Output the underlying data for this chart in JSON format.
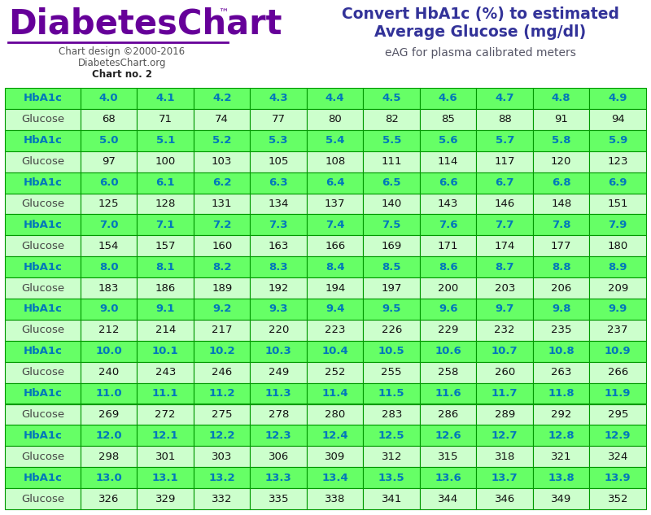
{
  "title_right_line1": "Convert HbA1c (%) to estimated",
  "title_right_line2": "Average Glucose (mg/dl)",
  "title_right_line3": "eAG for plasma calibrated meters",
  "logo_text": "DiabetesChart",
  "logo_tm": "™",
  "logo_sub1": "Chart design ©2000-2016",
  "logo_sub2": "DiabetesChart.org",
  "logo_sub3": "Chart no. 2",
  "bg_color": "#ffffff",
  "hba1c_row_bg": "#66ff66",
  "glucose_row_bg": "#ccffcc",
  "hba1c_text_color": "#0077bb",
  "glucose_label_color": "#444444",
  "glucose_value_color": "#111111",
  "border_color": "#009900",
  "logo_color": "#660099",
  "title_color": "#333399",
  "subtitle_color": "#555566",
  "rows": [
    {
      "hba1c": [
        "HbA1c",
        "4.0",
        "4.1",
        "4.2",
        "4.3",
        "4.4",
        "4.5",
        "4.6",
        "4.7",
        "4.8",
        "4.9"
      ],
      "glucose": [
        "Glucose",
        "68",
        "71",
        "74",
        "77",
        "80",
        "82",
        "85",
        "88",
        "91",
        "94"
      ]
    },
    {
      "hba1c": [
        "HbA1c",
        "5.0",
        "5.1",
        "5.2",
        "5.3",
        "5.4",
        "5.5",
        "5.6",
        "5.7",
        "5.8",
        "5.9"
      ],
      "glucose": [
        "Glucose",
        "97",
        "100",
        "103",
        "105",
        "108",
        "111",
        "114",
        "117",
        "120",
        "123"
      ]
    },
    {
      "hba1c": [
        "HbA1c",
        "6.0",
        "6.1",
        "6.2",
        "6.3",
        "6.4",
        "6.5",
        "6.6",
        "6.7",
        "6.8",
        "6.9"
      ],
      "glucose": [
        "Glucose",
        "125",
        "128",
        "131",
        "134",
        "137",
        "140",
        "143",
        "146",
        "148",
        "151"
      ]
    },
    {
      "hba1c": [
        "HbA1c",
        "7.0",
        "7.1",
        "7.2",
        "7.3",
        "7.4",
        "7.5",
        "7.6",
        "7.7",
        "7.8",
        "7.9"
      ],
      "glucose": [
        "Glucose",
        "154",
        "157",
        "160",
        "163",
        "166",
        "169",
        "171",
        "174",
        "177",
        "180"
      ]
    },
    {
      "hba1c": [
        "HbA1c",
        "8.0",
        "8.1",
        "8.2",
        "8.3",
        "8.4",
        "8.5",
        "8.6",
        "8.7",
        "8.8",
        "8.9"
      ],
      "glucose": [
        "Glucose",
        "183",
        "186",
        "189",
        "192",
        "194",
        "197",
        "200",
        "203",
        "206",
        "209"
      ]
    },
    {
      "hba1c": [
        "HbA1c",
        "9.0",
        "9.1",
        "9.2",
        "9.3",
        "9.4",
        "9.5",
        "9.6",
        "9.7",
        "9.8",
        "9.9"
      ],
      "glucose": [
        "Glucose",
        "212",
        "214",
        "217",
        "220",
        "223",
        "226",
        "229",
        "232",
        "235",
        "237"
      ]
    },
    {
      "hba1c": [
        "HbA1c",
        "10.0",
        "10.1",
        "10.2",
        "10.3",
        "10.4",
        "10.5",
        "10.6",
        "10.7",
        "10.8",
        "10.9"
      ],
      "glucose": [
        "Glucose",
        "240",
        "243",
        "246",
        "249",
        "252",
        "255",
        "258",
        "260",
        "263",
        "266"
      ]
    },
    {
      "hba1c": [
        "HbA1c",
        "11.0",
        "11.1",
        "11.2",
        "11.3",
        "11.4",
        "11.5",
        "11.6",
        "11.7",
        "11.8",
        "11.9"
      ],
      "glucose": [
        "Glucose",
        "269",
        "272",
        "275",
        "278",
        "280",
        "283",
        "286",
        "289",
        "292",
        "295"
      ]
    },
    {
      "hba1c": [
        "HbA1c",
        "12.0",
        "12.1",
        "12.2",
        "12.3",
        "12.4",
        "12.5",
        "12.6",
        "12.7",
        "12.8",
        "12.9"
      ],
      "glucose": [
        "Glucose",
        "298",
        "301",
        "303",
        "306",
        "309",
        "312",
        "315",
        "318",
        "321",
        "324"
      ]
    },
    {
      "hba1c": [
        "HbA1c",
        "13.0",
        "13.1",
        "13.2",
        "13.3",
        "13.4",
        "13.5",
        "13.6",
        "13.7",
        "13.8",
        "13.9"
      ],
      "glucose": [
        "Glucose",
        "326",
        "329",
        "332",
        "335",
        "338",
        "341",
        "344",
        "346",
        "349",
        "352"
      ]
    }
  ],
  "figsize": [
    8.0,
    6.33
  ],
  "dpi": 100
}
